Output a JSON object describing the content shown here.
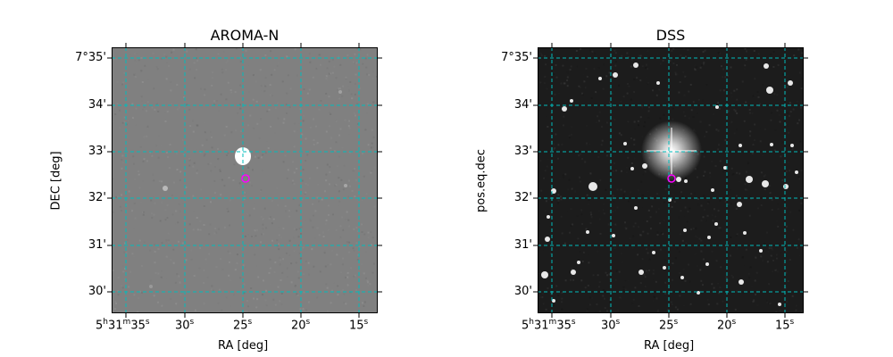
{
  "panels": [
    {
      "title": "AROMA-N",
      "xlabel": "RA [deg]",
      "ylabel": "DEC [deg]",
      "background": "#808080",
      "ra_ticks": [
        {
          "h": "5",
          "m": "31",
          "s": "35"
        },
        {
          "s": "30"
        },
        {
          "s": "25"
        },
        {
          "s": "20"
        },
        {
          "s": "15"
        }
      ],
      "dec_ticks": [
        "7°35'",
        "34'",
        "33'",
        "32'",
        "31'",
        "30'"
      ]
    },
    {
      "title": "DSS",
      "xlabel": "RA [deg]",
      "ylabel": "pos.eq.dec",
      "background": "#1c1c1c",
      "ra_ticks": [
        {
          "h": "5",
          "m": "31",
          "s": "35"
        },
        {
          "s": "30"
        },
        {
          "s": "25"
        },
        {
          "s": "20"
        },
        {
          "s": "15"
        }
      ],
      "dec_ticks": [
        "7°35'",
        "34'",
        "33'",
        "32'",
        "31'",
        "30'"
      ]
    }
  ],
  "colors": {
    "grid": "#00bcbc",
    "marker": "#ff00ff"
  },
  "source": {
    "label": "target-marker"
  }
}
